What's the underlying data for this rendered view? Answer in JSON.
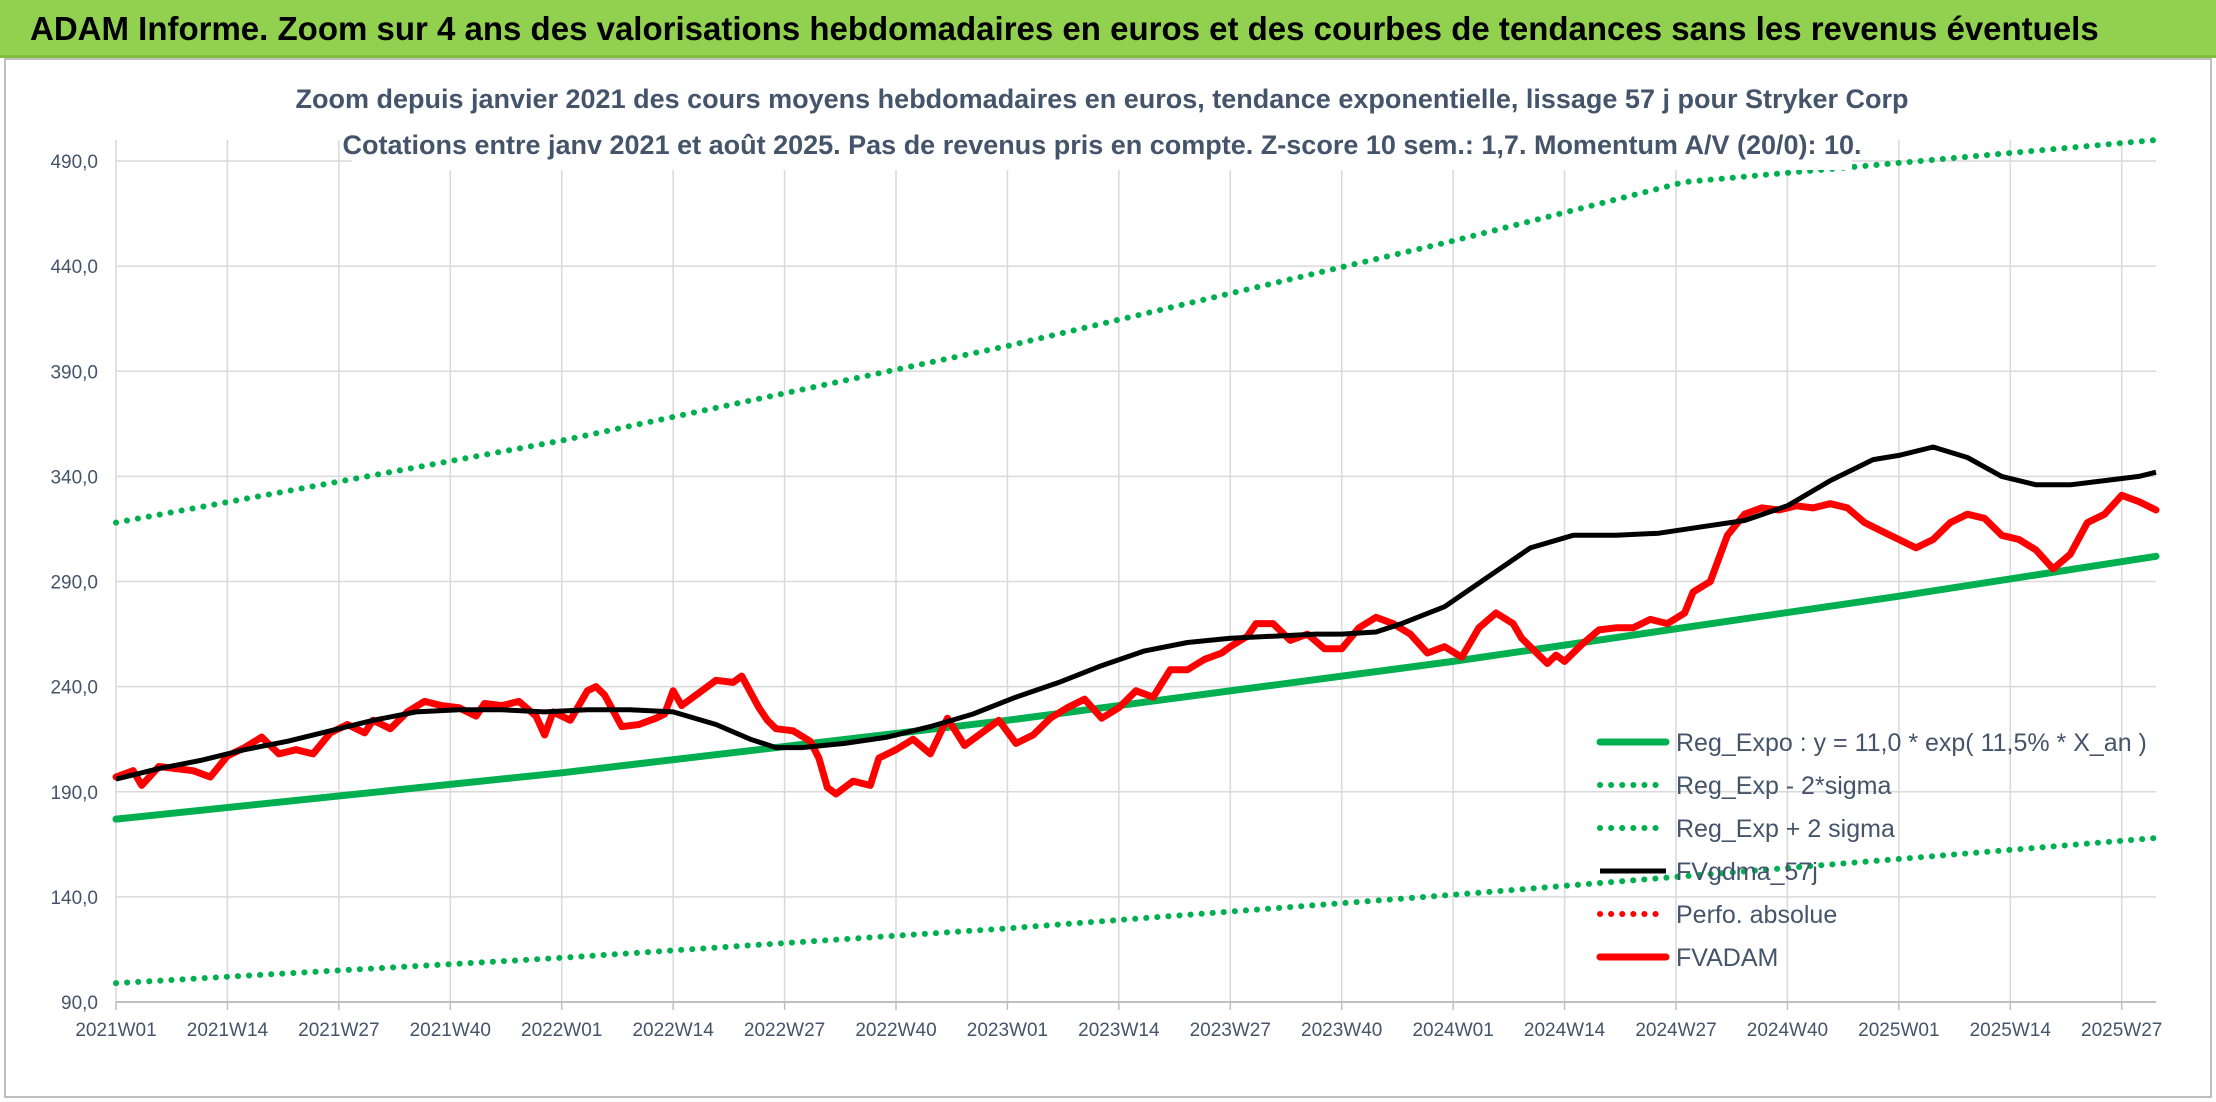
{
  "banner": {
    "title": "ADAM Informe. Zoom sur 4 ans des valorisations hebdomadaires en euros et des courbes de tendances sans les revenus éventuels"
  },
  "chart_data": {
    "type": "line",
    "title_line1": "Zoom depuis janvier 2021 des cours moyens hebdomadaires en euros, tendance exponentielle, lissage 57 j pour Stryker Corp",
    "title_line2": "Cotations entre janv 2021 et août 2025. Pas de revenus pris en compte. Z-score 10 sem.: 1,7. Momentum A/V (20/0): 10.",
    "ylim": [
      90,
      500
    ],
    "y_ticks": [
      "90,0",
      "140,0",
      "190,0",
      "240,0",
      "290,0",
      "340,0",
      "390,0",
      "440,0",
      "490,0"
    ],
    "y_tick_values": [
      90,
      140,
      190,
      240,
      290,
      340,
      390,
      440,
      490
    ],
    "x_ticks": [
      "2021W01",
      "2021W14",
      "2021W27",
      "2021W40",
      "2022W01",
      "2022W14",
      "2022W27",
      "2022W40",
      "2023W01",
      "2023W14",
      "2023W27",
      "2023W40",
      "2024W01",
      "2024W14",
      "2024W27",
      "2024W40",
      "2025W01",
      "2025W14",
      "2025W27"
    ],
    "x_tick_weeks": [
      0,
      13,
      26,
      39,
      52,
      65,
      78,
      91,
      104,
      117,
      130,
      143,
      156,
      169,
      182,
      195,
      208,
      221,
      234
    ],
    "x_range_weeks": [
      0,
      238
    ],
    "legend_position": "bottom-right",
    "grid": true,
    "colors": {
      "reg_expo": "#00b050",
      "sigma_bands": "#00b050",
      "fvgdma": "#000000",
      "perfo": "#ff0000",
      "fvadam": "#ff0000"
    },
    "series": [
      {
        "name": "Reg_Expo : y = 11,0 * exp( 11,5% *  X_an )",
        "style": "solid-thick",
        "points": [
          [
            0,
            177
          ],
          [
            52,
            199
          ],
          [
            104,
            224
          ],
          [
            156,
            252
          ],
          [
            208,
            283
          ],
          [
            238,
            302
          ]
        ]
      },
      {
        "name": "Reg_Exp - 2*sigma",
        "style": "dotted",
        "points": [
          [
            0,
            99
          ],
          [
            52,
            111
          ],
          [
            104,
            125
          ],
          [
            156,
            141
          ],
          [
            208,
            158
          ],
          [
            238,
            168
          ]
        ]
      },
      {
        "name": "Reg_Exp + 2 sigma",
        "style": "dotted",
        "points": [
          [
            0,
            318
          ],
          [
            52,
            357
          ],
          [
            104,
            402
          ],
          [
            156,
            452
          ],
          [
            183,
            480
          ],
          [
            238,
            500
          ]
        ]
      },
      {
        "name": "FVgdma_57j",
        "style": "solid",
        "points": [
          [
            0,
            196
          ],
          [
            5,
            201
          ],
          [
            10,
            205
          ],
          [
            15,
            210
          ],
          [
            20,
            214
          ],
          [
            25,
            219
          ],
          [
            30,
            224
          ],
          [
            35,
            228
          ],
          [
            40,
            229
          ],
          [
            45,
            229
          ],
          [
            50,
            228
          ],
          [
            55,
            229
          ],
          [
            60,
            229
          ],
          [
            65,
            228
          ],
          [
            70,
            222
          ],
          [
            74,
            215
          ],
          [
            77,
            211
          ],
          [
            80,
            211
          ],
          [
            85,
            213
          ],
          [
            90,
            216
          ],
          [
            95,
            221
          ],
          [
            100,
            227
          ],
          [
            105,
            235
          ],
          [
            110,
            242
          ],
          [
            115,
            250
          ],
          [
            120,
            257
          ],
          [
            125,
            261
          ],
          [
            130,
            263
          ],
          [
            135,
            264
          ],
          [
            140,
            265
          ],
          [
            143,
            265
          ],
          [
            147,
            266
          ],
          [
            150,
            270
          ],
          [
            155,
            278
          ],
          [
            160,
            292
          ],
          [
            165,
            306
          ],
          [
            170,
            312
          ],
          [
            175,
            312
          ],
          [
            180,
            313
          ],
          [
            185,
            316
          ],
          [
            190,
            319
          ],
          [
            195,
            326
          ],
          [
            200,
            338
          ],
          [
            205,
            348
          ],
          [
            208,
            350
          ],
          [
            212,
            354
          ],
          [
            216,
            349
          ],
          [
            220,
            340
          ],
          [
            224,
            336
          ],
          [
            228,
            336
          ],
          [
            232,
            338
          ],
          [
            236,
            340
          ],
          [
            238,
            342
          ]
        ]
      },
      {
        "name": "Perfo. absolue",
        "style": "dotted",
        "points": []
      },
      {
        "name": "FVADAM",
        "style": "solid-thick",
        "points": [
          [
            0,
            197
          ],
          [
            2,
            200
          ],
          [
            3,
            193
          ],
          [
            5,
            202
          ],
          [
            7,
            201
          ],
          [
            9,
            200
          ],
          [
            11,
            197
          ],
          [
            13,
            207
          ],
          [
            15,
            211
          ],
          [
            17,
            216
          ],
          [
            19,
            208
          ],
          [
            21,
            210
          ],
          [
            23,
            208
          ],
          [
            25,
            218
          ],
          [
            27,
            222
          ],
          [
            29,
            218
          ],
          [
            30,
            224
          ],
          [
            32,
            220
          ],
          [
            34,
            228
          ],
          [
            36,
            233
          ],
          [
            38,
            231
          ],
          [
            40,
            230
          ],
          [
            42,
            226
          ],
          [
            43,
            232
          ],
          [
            45,
            231
          ],
          [
            47,
            233
          ],
          [
            49,
            226
          ],
          [
            50,
            217
          ],
          [
            51,
            228
          ],
          [
            53,
            224
          ],
          [
            55,
            238
          ],
          [
            56,
            240
          ],
          [
            57,
            236
          ],
          [
            59,
            221
          ],
          [
            61,
            222
          ],
          [
            63,
            225
          ],
          [
            64,
            227
          ],
          [
            65,
            238
          ],
          [
            66,
            231
          ],
          [
            68,
            237
          ],
          [
            70,
            243
          ],
          [
            72,
            242
          ],
          [
            73,
            245
          ],
          [
            75,
            230
          ],
          [
            76,
            224
          ],
          [
            77,
            220
          ],
          [
            79,
            219
          ],
          [
            81,
            214
          ],
          [
            82,
            206
          ],
          [
            83,
            192
          ],
          [
            84,
            189
          ],
          [
            86,
            195
          ],
          [
            88,
            193
          ],
          [
            89,
            206
          ],
          [
            91,
            210
          ],
          [
            93,
            215
          ],
          [
            95,
            208
          ],
          [
            97,
            225
          ],
          [
            99,
            212
          ],
          [
            101,
            218
          ],
          [
            103,
            224
          ],
          [
            105,
            213
          ],
          [
            107,
            217
          ],
          [
            109,
            225
          ],
          [
            111,
            230
          ],
          [
            113,
            234
          ],
          [
            115,
            225
          ],
          [
            117,
            230
          ],
          [
            119,
            238
          ],
          [
            121,
            235
          ],
          [
            123,
            248
          ],
          [
            125,
            248
          ],
          [
            127,
            253
          ],
          [
            129,
            256
          ],
          [
            130,
            259
          ],
          [
            132,
            264
          ],
          [
            133,
            270
          ],
          [
            135,
            270
          ],
          [
            137,
            262
          ],
          [
            139,
            265
          ],
          [
            141,
            258
          ],
          [
            143,
            258
          ],
          [
            145,
            268
          ],
          [
            147,
            273
          ],
          [
            149,
            270
          ],
          [
            151,
            265
          ],
          [
            153,
            256
          ],
          [
            155,
            259
          ],
          [
            157,
            254
          ],
          [
            159,
            268
          ],
          [
            161,
            275
          ],
          [
            163,
            270
          ],
          [
            164,
            263
          ],
          [
            166,
            255
          ],
          [
            167,
            251
          ],
          [
            168,
            255
          ],
          [
            169,
            252
          ],
          [
            171,
            260
          ],
          [
            173,
            267
          ],
          [
            175,
            268
          ],
          [
            177,
            268
          ],
          [
            179,
            272
          ],
          [
            181,
            270
          ],
          [
            183,
            275
          ],
          [
            184,
            285
          ],
          [
            186,
            290
          ],
          [
            188,
            312
          ],
          [
            190,
            322
          ],
          [
            192,
            325
          ],
          [
            194,
            324
          ],
          [
            196,
            326
          ],
          [
            198,
            325
          ],
          [
            200,
            327
          ],
          [
            202,
            325
          ],
          [
            204,
            318
          ],
          [
            206,
            314
          ],
          [
            208,
            310
          ],
          [
            210,
            306
          ],
          [
            212,
            310
          ],
          [
            214,
            318
          ],
          [
            216,
            322
          ],
          [
            218,
            320
          ],
          [
            220,
            312
          ],
          [
            222,
            310
          ],
          [
            224,
            305
          ],
          [
            226,
            296
          ],
          [
            228,
            303
          ],
          [
            230,
            318
          ],
          [
            232,
            322
          ],
          [
            234,
            331
          ],
          [
            236,
            328
          ],
          [
            238,
            324
          ]
        ]
      }
    ]
  }
}
